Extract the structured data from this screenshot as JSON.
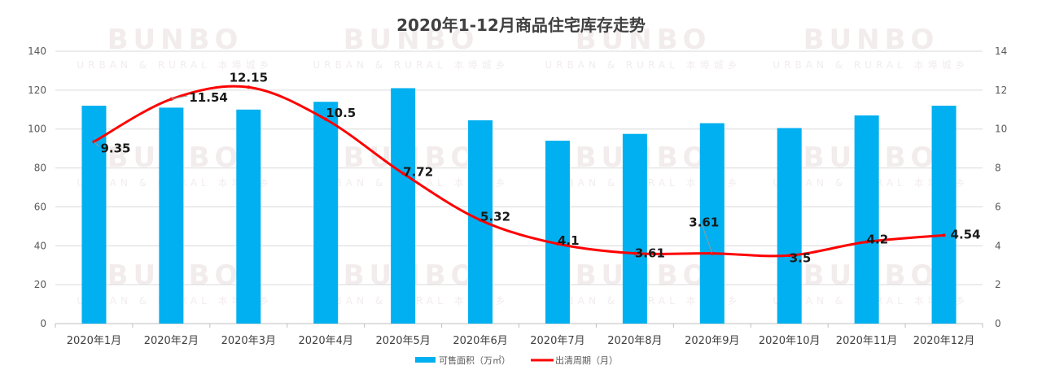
{
  "chart_data": {
    "type": "bar+line",
    "title": "2020年1-12月商品住宅库存走势",
    "categories": [
      "2020年1月",
      "2020年2月",
      "2020年3月",
      "2020年4月",
      "2020年5月",
      "2020年6月",
      "2020年7月",
      "2020年8月",
      "2020年9月",
      "2020年10月",
      "2020年11月",
      "2020年12月"
    ],
    "series": [
      {
        "name": "可售面积（万㎡）",
        "type": "bar",
        "axis": "left",
        "color": "#00B0F0",
        "values": [
          112,
          111,
          110,
          114,
          121,
          104.5,
          94,
          97.5,
          103,
          100.5,
          107,
          112
        ]
      },
      {
        "name": "出清周期（月）",
        "type": "line",
        "smooth": true,
        "axis": "right",
        "color": "#FF0000",
        "values": [
          9.35,
          11.54,
          12.15,
          10.5,
          7.72,
          5.32,
          4.1,
          3.61,
          3.61,
          3.5,
          4.2,
          4.54
        ],
        "labels": [
          "9.35",
          "11.54",
          "12.15",
          "10.5",
          "7.72",
          "5.32",
          "4.1",
          "3.61",
          "3.61",
          "3.5",
          "4.2",
          "4.54"
        ]
      }
    ],
    "y_left": {
      "range": [
        0,
        140
      ],
      "ticks": [
        "0",
        "20",
        "40",
        "60",
        "80",
        "100",
        "120",
        "140"
      ]
    },
    "y_right": {
      "range": [
        0,
        14
      ],
      "ticks": [
        "0",
        "2",
        "4",
        "6",
        "8",
        "10",
        "12",
        "14"
      ]
    },
    "grid": true,
    "legend": "bottom"
  },
  "watermark": {
    "logo": "BUNBO",
    "sub": "URBAN & RURAL 本埠城乡"
  }
}
